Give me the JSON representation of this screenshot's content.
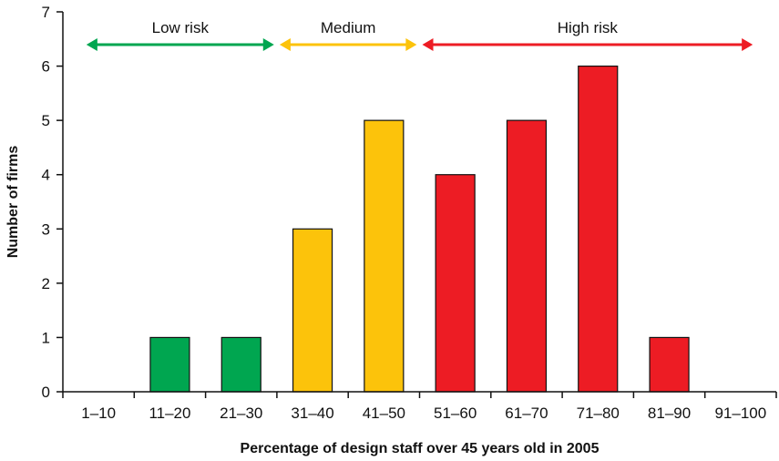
{
  "chart_data": {
    "type": "bar",
    "title": "",
    "xlabel": "Percentage of design staff over 45 years old in 2005",
    "ylabel": "Number of firms",
    "ylim": [
      0,
      7
    ],
    "yticks": [
      0,
      1,
      2,
      3,
      4,
      5,
      6,
      7
    ],
    "grid": false,
    "categories": [
      "1–10",
      "11–20",
      "21–30",
      "31–40",
      "41–50",
      "51–60",
      "61–70",
      "71–80",
      "81–90",
      "91–100"
    ],
    "values": [
      0,
      1,
      1,
      3,
      5,
      4,
      5,
      6,
      1,
      0
    ],
    "bar_colors": [
      "#00a650",
      "#00a650",
      "#00a650",
      "#fcc30b",
      "#fcc30b",
      "#ed1c24",
      "#ed1c24",
      "#ed1c24",
      "#ed1c24",
      "#ed1c24"
    ],
    "risk_bands": [
      {
        "label": "Low risk",
        "from_category": 0,
        "to_category": 2,
        "color": "#00a650"
      },
      {
        "label": "Medium",
        "from_category": 3,
        "to_category": 4,
        "color": "#fcc30b"
      },
      {
        "label": "High risk",
        "from_category": 5,
        "to_category": 9,
        "color": "#ed1c24"
      }
    ]
  }
}
